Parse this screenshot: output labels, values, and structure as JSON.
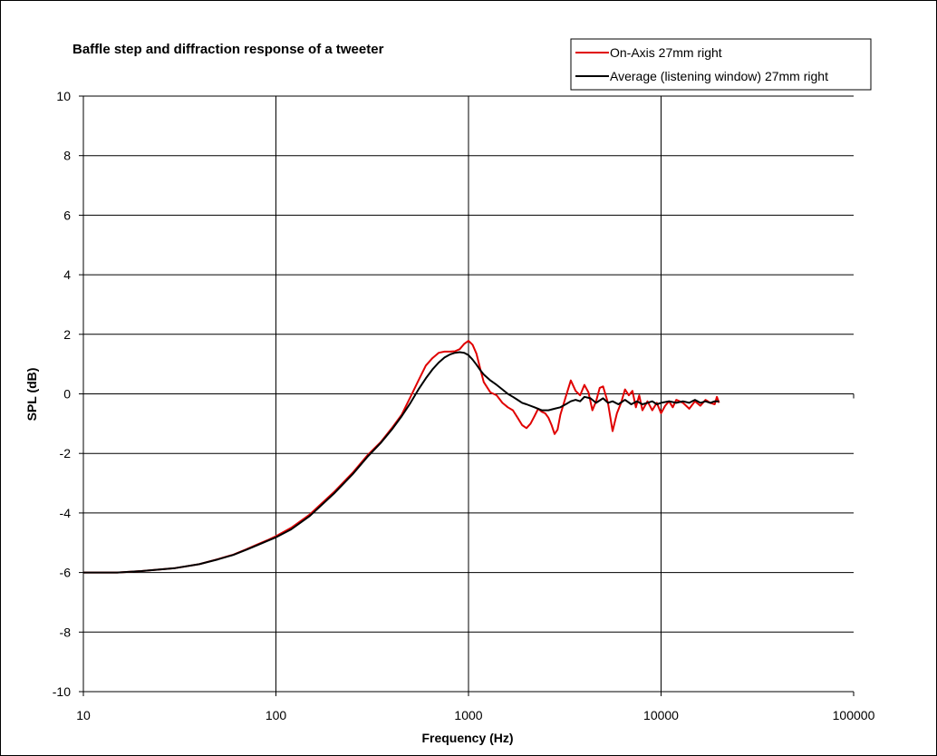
{
  "chart_data": {
    "type": "line",
    "title": "Baffle step and diffraction response of a tweeter",
    "xlabel": "Frequency (Hz)",
    "ylabel": "SPL (dB)",
    "x_scale": "log",
    "xlim": [
      10,
      100000
    ],
    "ylim": [
      -10,
      10
    ],
    "x_ticks": [
      10,
      100,
      1000,
      10000,
      100000
    ],
    "y_ticks": [
      -10,
      -8,
      -6,
      -4,
      -2,
      0,
      2,
      4,
      6,
      8,
      10
    ],
    "x_tick_labels": [
      "10",
      "100",
      "1000",
      "10000",
      "100000"
    ],
    "y_tick_labels": [
      "-10",
      "-8",
      "-6",
      "-4",
      "-2",
      "0",
      "2",
      "4",
      "6",
      "8",
      "10"
    ],
    "grid": true,
    "legend_position": "top-right",
    "series": [
      {
        "name": "On-Axis 27mm right",
        "color": "#e00000",
        "x": [
          10,
          15,
          20,
          30,
          40,
          50,
          60,
          70,
          80,
          90,
          100,
          120,
          150,
          200,
          250,
          300,
          350,
          400,
          450,
          500,
          550,
          600,
          650,
          700,
          750,
          800,
          850,
          900,
          950,
          1000,
          1050,
          1100,
          1150,
          1200,
          1300,
          1400,
          1500,
          1600,
          1700,
          1800,
          1900,
          2000,
          2100,
          2200,
          2300,
          2400,
          2500,
          2600,
          2700,
          2800,
          2900,
          3000,
          3200,
          3400,
          3600,
          3800,
          4000,
          4200,
          4400,
          4600,
          4800,
          5000,
          5300,
          5600,
          5900,
          6200,
          6500,
          6800,
          7100,
          7400,
          7700,
          8000,
          8500,
          9000,
          9500,
          10000,
          10500,
          11000,
          11500,
          12000,
          13000,
          14000,
          15000,
          16000,
          17000,
          18000,
          19000,
          19500,
          20000
        ],
        "values": [
          -6.0,
          -6.0,
          -5.95,
          -5.85,
          -5.72,
          -5.55,
          -5.4,
          -5.22,
          -5.06,
          -4.92,
          -4.78,
          -4.5,
          -4.05,
          -3.3,
          -2.65,
          -2.05,
          -1.62,
          -1.15,
          -0.7,
          -0.1,
          0.45,
          0.95,
          1.2,
          1.38,
          1.42,
          1.42,
          1.43,
          1.5,
          1.68,
          1.78,
          1.65,
          1.35,
          0.85,
          0.4,
          0.05,
          -0.05,
          -0.3,
          -0.45,
          -0.55,
          -0.8,
          -1.05,
          -1.15,
          -1.0,
          -0.75,
          -0.5,
          -0.6,
          -0.65,
          -0.8,
          -1.05,
          -1.35,
          -1.2,
          -0.7,
          -0.1,
          0.45,
          0.1,
          -0.05,
          0.3,
          0.05,
          -0.55,
          -0.25,
          0.2,
          0.25,
          -0.3,
          -1.25,
          -0.65,
          -0.3,
          0.15,
          -0.05,
          0.1,
          -0.45,
          -0.05,
          -0.55,
          -0.25,
          -0.55,
          -0.3,
          -0.65,
          -0.4,
          -0.25,
          -0.45,
          -0.2,
          -0.3,
          -0.5,
          -0.25,
          -0.4,
          -0.2,
          -0.3,
          -0.35,
          -0.1,
          -0.3
        ]
      },
      {
        "name": "Average (listening window) 27mm right",
        "color": "#000000",
        "x": [
          10,
          15,
          20,
          30,
          40,
          50,
          60,
          70,
          80,
          90,
          100,
          120,
          150,
          200,
          250,
          300,
          350,
          400,
          450,
          500,
          550,
          600,
          650,
          700,
          750,
          800,
          850,
          900,
          950,
          1000,
          1050,
          1100,
          1150,
          1200,
          1300,
          1400,
          1500,
          1600,
          1700,
          1800,
          1900,
          2000,
          2200,
          2400,
          2600,
          2800,
          3000,
          3200,
          3400,
          3600,
          3800,
          4000,
          4300,
          4600,
          5000,
          5300,
          5600,
          6000,
          6500,
          7000,
          7500,
          8000,
          8500,
          9000,
          9500,
          10000,
          11000,
          12000,
          13000,
          14000,
          15000,
          16000,
          17000,
          18000,
          19000,
          20000
        ],
        "values": [
          -6.0,
          -6.0,
          -5.95,
          -5.85,
          -5.72,
          -5.56,
          -5.41,
          -5.24,
          -5.08,
          -4.94,
          -4.82,
          -4.55,
          -4.1,
          -3.35,
          -2.7,
          -2.1,
          -1.65,
          -1.2,
          -0.75,
          -0.3,
          0.15,
          0.52,
          0.82,
          1.05,
          1.22,
          1.32,
          1.38,
          1.4,
          1.38,
          1.3,
          1.15,
          0.98,
          0.8,
          0.65,
          0.45,
          0.3,
          0.15,
          0.0,
          -0.1,
          -0.2,
          -0.3,
          -0.35,
          -0.45,
          -0.55,
          -0.55,
          -0.5,
          -0.45,
          -0.35,
          -0.25,
          -0.2,
          -0.25,
          -0.1,
          -0.15,
          -0.3,
          -0.15,
          -0.3,
          -0.25,
          -0.35,
          -0.2,
          -0.35,
          -0.25,
          -0.35,
          -0.3,
          -0.25,
          -0.35,
          -0.3,
          -0.25,
          -0.3,
          -0.25,
          -0.3,
          -0.2,
          -0.3,
          -0.25,
          -0.3,
          -0.25,
          -0.25
        ]
      }
    ]
  }
}
